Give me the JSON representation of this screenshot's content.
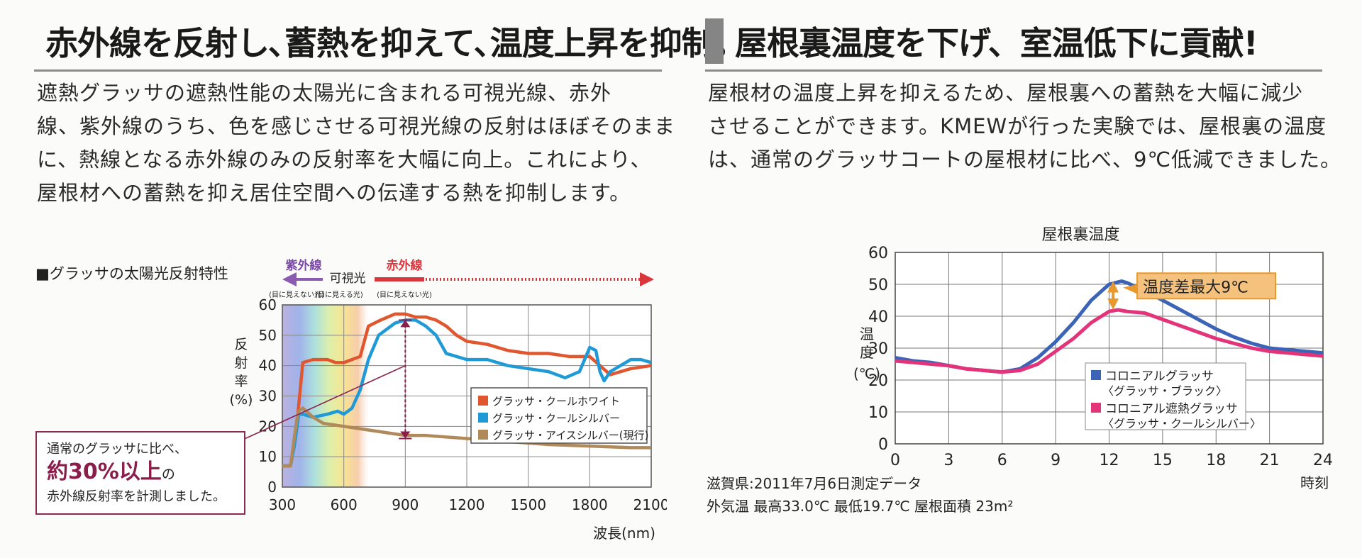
{
  "left": {
    "heading": "赤外線を反射し､蓄熱を抑えて､温度上昇を抑制｡",
    "paragraph_lines": [
      "遮熱グラッサの遮熱性能の太陽光に含まれる可視光線、赤外",
      "線、紫外線のうち、色を感じさせる可視光線の反射はほぼそのまま",
      "に、熱線となる赤外線のみの反射率を大幅に向上。これにより、",
      "屋根材への蓄熱を抑え居住空間への伝達する熱を抑制します。"
    ],
    "chart_title": "■グラッサの太陽光反射特性",
    "note": {
      "line1": "通常のグラッサに比べ、",
      "big": "約30%以上",
      "big_suffix": "の",
      "line3": "赤外線反射率を計測しました。"
    }
  },
  "right": {
    "heading": "屋根裏温度を下げ、室温低下に貢献!",
    "paragraph_lines": [
      "屋根材の温度上昇を抑えるため、屋根裏への蓄熱を大幅に減少",
      "させることができます。KMEWが行った実験では、屋根裏の温度",
      "は、通常のグラッサコートの屋根材に比べ、9℃低減できました。"
    ],
    "footer_line1": "滋賀県:2011年7月6日測定データ",
    "footer_line2": "外気温  最高33.0℃  最低19.7℃  屋根面積  23m²"
  },
  "chart_data": [
    {
      "type": "line",
      "title": "",
      "xlabel": "波長(nm)",
      "ylabel": "反射率(%)",
      "xlim": [
        300,
        2100
      ],
      "ylim": [
        0,
        60
      ],
      "xticks": [
        "300",
        "600",
        "900",
        "1200",
        "1500",
        "1800",
        "2100"
      ],
      "yticks": [
        "0",
        "10",
        "20",
        "30",
        "40",
        "50",
        "60"
      ],
      "band_labels": {
        "uv": "紫外線",
        "uv_sub": "(目に見えない光)",
        "vis": "可視光",
        "vis_sub": "(目に見える光)",
        "ir": "赤外線",
        "ir_sub": "(目に見えない光)"
      },
      "legend_position": "right",
      "colors": {
        "white": "#e0562e",
        "silver": "#1f9ad6",
        "ice": "#b08a5a"
      },
      "series": [
        {
          "name": "グラッサ・クールホワイト",
          "x": [
            300,
            340,
            370,
            400,
            450,
            520,
            560,
            600,
            640,
            680,
            720,
            780,
            850,
            900,
            950,
            1000,
            1050,
            1100,
            1150,
            1200,
            1300,
            1400,
            1500,
            1600,
            1700,
            1800,
            1850,
            1900,
            2000,
            2100
          ],
          "y": [
            7,
            7,
            20,
            41,
            42,
            42,
            41,
            41,
            42,
            43,
            53,
            55,
            57,
            57,
            56,
            56,
            55,
            53,
            50,
            48,
            47,
            45,
            44,
            44,
            43,
            43,
            40,
            37,
            39,
            40
          ]
        },
        {
          "name": "グラッサ・クールシルバー",
          "x": [
            300,
            340,
            360,
            380,
            400,
            450,
            520,
            570,
            600,
            640,
            680,
            720,
            770,
            850,
            900,
            950,
            1000,
            1050,
            1100,
            1150,
            1200,
            1300,
            1400,
            1500,
            1600,
            1680,
            1750,
            1800,
            1830,
            1850,
            1870,
            1900,
            1950,
            2000,
            2050,
            2100
          ],
          "y": [
            7,
            7,
            14,
            24,
            24,
            23,
            24,
            25,
            24,
            26,
            32,
            42,
            50,
            54,
            55,
            55,
            53,
            50,
            44,
            43,
            42,
            42,
            40,
            39,
            38,
            36,
            38,
            46,
            45,
            38,
            35,
            38,
            40,
            42,
            42,
            41
          ]
        },
        {
          "name": "グラッサ・アイスシルバー(現行)",
          "x": [
            300,
            340,
            370,
            380,
            400,
            450,
            500,
            600,
            700,
            800,
            900,
            1000,
            1200,
            1400,
            1600,
            1800,
            2000,
            2100
          ],
          "y": [
            7,
            7,
            22,
            25,
            26,
            23,
            21,
            20,
            19,
            18,
            17,
            17,
            16,
            15,
            14,
            13.5,
            13,
            13
          ]
        }
      ],
      "annotation": {
        "x": 900,
        "from": 16,
        "to": 55
      }
    },
    {
      "type": "line",
      "title": "屋根裏温度",
      "xlabel": "時刻",
      "ylabel": "温度(℃)",
      "xlim": [
        0,
        24
      ],
      "ylim": [
        0,
        60
      ],
      "xticks": [
        "0",
        "3",
        "6",
        "9",
        "12",
        "15",
        "18",
        "21",
        "24"
      ],
      "yticks": [
        "0",
        "10",
        "20",
        "30",
        "40",
        "50",
        "60"
      ],
      "grid": true,
      "legend_position": "bottom-right",
      "colors": {
        "black": "#3b64b6",
        "silver": "#e3347a",
        "callout": "#e8992e"
      },
      "series": [
        {
          "name": "コロニアルグラッサ〈グラッサ・ブラック〉",
          "x": [
            0,
            1,
            2,
            3,
            4,
            5,
            6,
            7,
            8,
            9,
            10,
            11,
            12,
            12.7,
            13,
            14,
            15,
            16,
            17,
            18,
            19,
            20,
            21,
            22,
            23,
            24
          ],
          "y": [
            27,
            26,
            25.5,
            24.5,
            23.5,
            23,
            22.5,
            23.5,
            27,
            32,
            38,
            45,
            50,
            51,
            50.5,
            48,
            45,
            42,
            39,
            36,
            33.5,
            31.5,
            30,
            29.5,
            29,
            28.5
          ]
        },
        {
          "name": "コロニアル遮熱グラッサ〈グラッサ・クールシルバー〉",
          "x": [
            0,
            1,
            2,
            3,
            4,
            5,
            6,
            7,
            8,
            9,
            10,
            11,
            12,
            12.5,
            13,
            14,
            15,
            16,
            17,
            18,
            19,
            20,
            21,
            22,
            23,
            24
          ],
          "y": [
            26,
            25.5,
            25,
            24.5,
            23.5,
            23,
            22.5,
            23,
            25,
            29,
            33,
            38,
            41.5,
            42,
            41.5,
            41,
            39,
            37,
            35,
            33,
            31.5,
            30,
            29,
            28.5,
            28,
            27.5
          ]
        }
      ],
      "annotation": {
        "label": "温度差最大9℃",
        "x": 12.7,
        "from": 42,
        "to": 51
      }
    }
  ]
}
